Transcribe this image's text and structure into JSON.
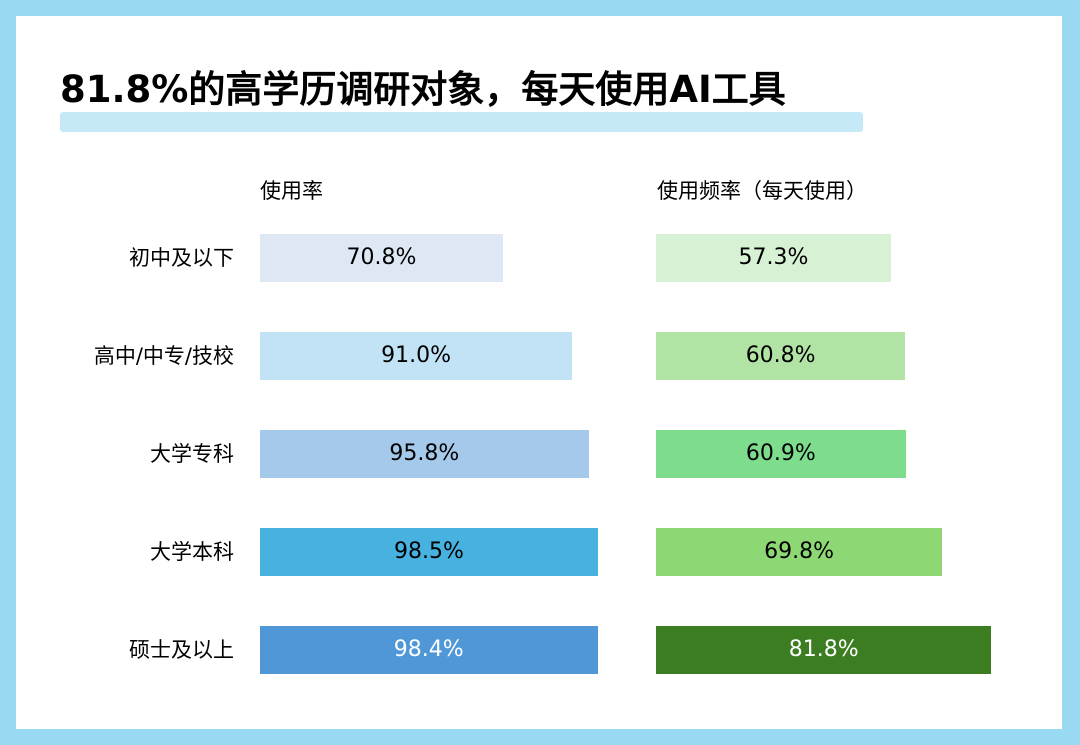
{
  "title": "81.8%的高学历调研对象，每天使用AI工具",
  "chart_data": {
    "type": "bar",
    "categories": [
      "初中及以下",
      "高中/中专/技校",
      "大学专科",
      "大学本科",
      "硕士及以上"
    ],
    "series": [
      {
        "name": "使用率",
        "values": [
          70.8,
          91.0,
          95.8,
          98.5,
          98.4
        ],
        "labels": [
          "70.8%",
          "91.0%",
          "95.8%",
          "98.5%",
          "98.4%"
        ],
        "colors": [
          "#dde8f4",
          "#c2e3f5",
          "#a5c9ea",
          "#47b1df",
          "#5097d8"
        ],
        "label_colors": [
          "#000000",
          "#000000",
          "#000000",
          "#000000",
          "#ffffff"
        ]
      },
      {
        "name": "使用频率（每天使用）",
        "values": [
          57.3,
          60.8,
          60.9,
          69.8,
          81.8
        ],
        "labels": [
          "57.3%",
          "60.8%",
          "60.9%",
          "69.8%",
          "81.8%"
        ],
        "colors": [
          "#d6f1d3",
          "#b1e3a5",
          "#7ddd8d",
          "#8dd874",
          "#3d7d22"
        ],
        "label_colors": [
          "#000000",
          "#000000",
          "#000000",
          "#000000",
          "#ffffff"
        ]
      }
    ],
    "orientation": "horizontal",
    "grid": false
  },
  "colors": {
    "frame": "#9ad9f2",
    "card": "#ffffff",
    "title_highlight": "#c6e9f7"
  }
}
